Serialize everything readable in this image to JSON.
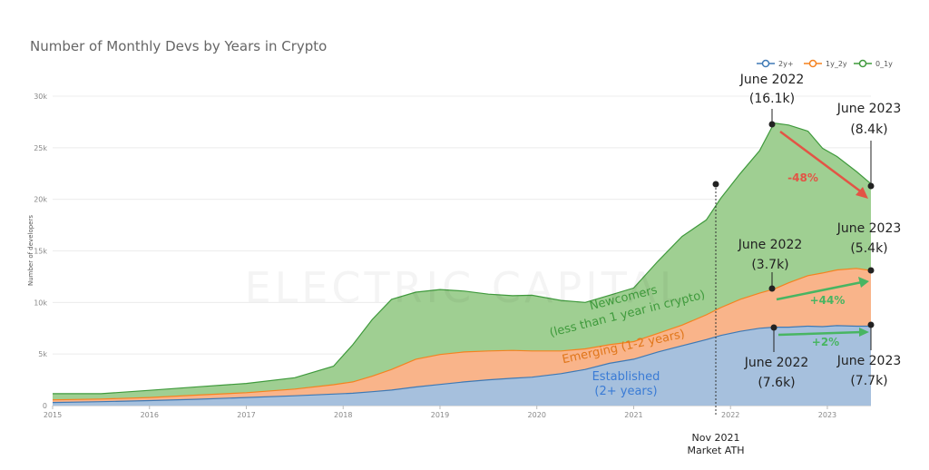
{
  "colors": {
    "established": "#a6c0dd",
    "established_line": "#3e79b5",
    "emerging": "#f9b48a",
    "emerging_line": "#f5821f",
    "newcomers": "#9fcf92",
    "newcomers_line": "#3f9a3c",
    "red": "#e35445",
    "green_text": "#3f9a3c",
    "emerging_text": "#e0761a",
    "established_text": "#3a7bd5"
  },
  "chart_data": {
    "type": "area",
    "stacked": true,
    "title": "Number of Monthly Devs by Years in Crypto",
    "ylabel": "Number of developers",
    "ylim": [
      0,
      30000
    ],
    "yticks": [
      0,
      5000,
      10000,
      15000,
      20000,
      25000,
      30000
    ],
    "ytick_labels": [
      "0",
      "5k",
      "10k",
      "15k",
      "20k",
      "25k",
      "30k"
    ],
    "xlim": [
      2015.0,
      2023.45
    ],
    "xticks": [
      2015,
      2016,
      2017,
      2018,
      2019,
      2020,
      2021,
      2022,
      2023
    ],
    "xtick_labels": [
      "2015",
      "2016",
      "2017",
      "2018",
      "2019",
      "2020",
      "2021",
      "2022",
      "2023"
    ],
    "legend_position": "top-right",
    "x": [
      2015.0,
      2015.5,
      2016.0,
      2016.5,
      2017.0,
      2017.5,
      2017.9,
      2018.1,
      2018.3,
      2018.5,
      2018.75,
      2019.0,
      2019.25,
      2019.5,
      2019.75,
      2019.95,
      2020.25,
      2020.5,
      2020.75,
      2021.0,
      2021.25,
      2021.5,
      2021.75,
      2021.9,
      2022.1,
      2022.3,
      2022.45,
      2022.6,
      2022.8,
      2022.95,
      2023.1,
      2023.3,
      2023.45
    ],
    "series": [
      {
        "name": "2y+",
        "values": [
          300,
          380,
          480,
          620,
          780,
          950,
          1120,
          1200,
          1350,
          1500,
          1800,
          2050,
          2300,
          2500,
          2650,
          2750,
          3100,
          3500,
          4100,
          4500,
          5200,
          5800,
          6400,
          6800,
          7200,
          7500,
          7600,
          7600,
          7700,
          7650,
          7750,
          7700,
          7700
        ]
      },
      {
        "name": "1y_2y",
        "values": [
          250,
          250,
          300,
          400,
          470,
          650,
          900,
          1100,
          1500,
          2000,
          2700,
          2900,
          2900,
          2800,
          2700,
          2550,
          2200,
          2000,
          1800,
          1700,
          1800,
          2000,
          2400,
          2700,
          3100,
          3400,
          3700,
          4300,
          4900,
          5200,
          5400,
          5600,
          5400
        ]
      },
      {
        "name": "0_1y",
        "values": [
          600,
          520,
          700,
          800,
          900,
          1100,
          1800,
          3600,
          5500,
          6800,
          6500,
          6300,
          5900,
          5500,
          5300,
          5400,
          4900,
          4500,
          4800,
          5200,
          7000,
          8600,
          9200,
          10600,
          12200,
          13800,
          16100,
          15300,
          14000,
          12100,
          11000,
          9400,
          8400
        ]
      }
    ]
  },
  "annotations": {
    "june2022_total_date": "June 2022",
    "june2022_total_value": "(16.1k)",
    "june2023_total_date": "June 2023",
    "june2023_total_value": "(8.4k)",
    "pct_total": "-48%",
    "june2022_emerging_date": "June 2022",
    "june2022_emerging_value": "(3.7k)",
    "june2023_emerging_date": "June 2023",
    "june2023_emerging_value": "(5.4k)",
    "pct_emerging": "+44%",
    "june2022_established_date": "June 2022",
    "june2022_established_value": "(7.6k)",
    "june2023_established_date": "June 2023",
    "june2023_established_value": "(7.7k)",
    "pct_established": "+2%",
    "ath_line1": "Nov 2021",
    "ath_line2": "Market ATH",
    "newcomers_line1": "Newcomers",
    "newcomers_line2": "(less than 1 year in crypto)",
    "emerging_label": "Emerging (1-2 years)",
    "established_line1": "Established",
    "established_line2": "(2+ years)",
    "watermark": "ELECTRIC CAPITAL"
  }
}
